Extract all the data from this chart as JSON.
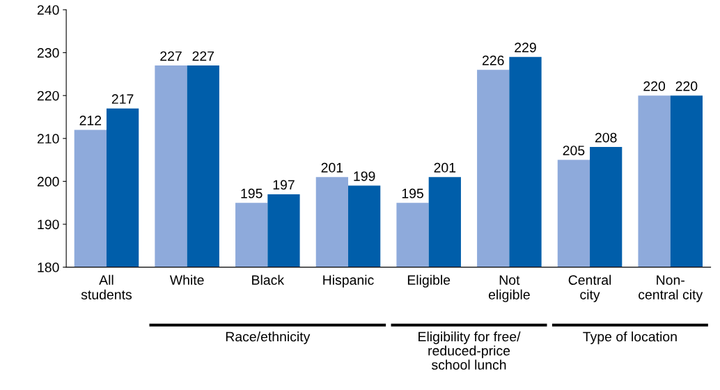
{
  "chart_data": {
    "type": "bar",
    "categories": [
      "All\nstudents",
      "White",
      "Black",
      "Hispanic",
      "Eligible",
      "Not\neligible",
      "Central\ncity",
      "Non-\ncentral city"
    ],
    "series": [
      {
        "color": "#8eaadb",
        "values": [
          212,
          227,
          195,
          201,
          195,
          226,
          205,
          220
        ]
      },
      {
        "color": "#005eaa",
        "values": [
          217,
          227,
          197,
          199,
          201,
          229,
          208,
          220
        ]
      }
    ],
    "ylim": [
      180,
      240
    ],
    "yticks": [
      180,
      190,
      200,
      210,
      220,
      230,
      240
    ],
    "data_labels": true,
    "grid": false,
    "legend": false,
    "annotations": [
      "Race/ethnicity",
      "Eligibility for free/\nreduced-price\nschool lunch",
      "Type of location"
    ]
  }
}
